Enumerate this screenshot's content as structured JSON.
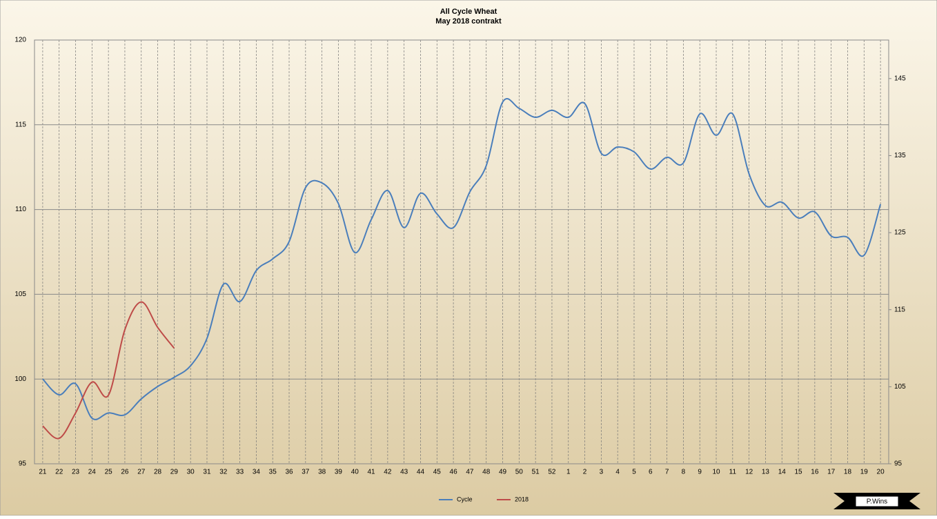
{
  "chart_data": {
    "type": "line",
    "title": "All Cycle Wheat",
    "subtitle": "May 2018 contrakt",
    "categories": [
      "21",
      "22",
      "23",
      "24",
      "25",
      "26",
      "27",
      "28",
      "29",
      "30",
      "31",
      "32",
      "33",
      "34",
      "35",
      "36",
      "37",
      "38",
      "39",
      "40",
      "41",
      "42",
      "43",
      "44",
      "45",
      "46",
      "47",
      "48",
      "49",
      "50",
      "51",
      "52",
      "1",
      "2",
      "3",
      "4",
      "5",
      "6",
      "7",
      "8",
      "9",
      "10",
      "11",
      "12",
      "13",
      "14",
      "15",
      "16",
      "17",
      "18",
      "19",
      "20"
    ],
    "series": [
      {
        "name": "Cycle",
        "color": "#4a7ebb",
        "values": [
          100.0,
          99.07,
          99.72,
          97.69,
          98.0,
          97.89,
          98.83,
          99.56,
          100.1,
          100.78,
          102.4,
          105.59,
          104.57,
          106.4,
          107.09,
          108.11,
          111.29,
          111.57,
          110.35,
          107.46,
          109.41,
          111.12,
          108.93,
          110.96,
          109.74,
          108.93,
          111.04,
          112.59,
          116.34,
          115.97,
          115.44,
          115.85,
          115.44,
          116.25,
          113.32,
          113.69,
          113.4,
          112.39,
          113.08,
          112.75,
          115.64,
          114.38,
          115.64,
          112.1,
          110.23,
          110.43,
          109.5,
          109.86,
          108.44,
          108.36,
          107.3,
          110.31
        ]
      },
      {
        "name": "2018",
        "color": "#be4b48",
        "axis": "y2",
        "values": [
          99.9,
          98.3,
          101.6,
          105.6,
          103.9,
          112.4,
          116.0,
          112.7,
          110.0,
          null,
          null,
          null,
          null,
          null,
          null,
          null,
          null,
          null,
          null,
          null,
          null,
          null,
          null,
          null,
          null,
          null,
          null,
          null,
          null,
          null,
          null,
          null,
          null,
          null,
          null,
          null,
          null,
          null,
          null,
          null,
          null,
          null,
          null,
          null,
          null,
          null,
          null,
          null,
          null,
          null,
          null,
          null
        ]
      }
    ],
    "ylim": [
      95,
      120
    ],
    "yticks": [
      95,
      100,
      105,
      110,
      115,
      120
    ],
    "y2lim": [
      95,
      150
    ],
    "y2ticks": [
      95,
      105,
      115,
      125,
      135,
      145
    ],
    "grid": true,
    "legend": "bottom",
    "watermark": "P.Wins"
  }
}
